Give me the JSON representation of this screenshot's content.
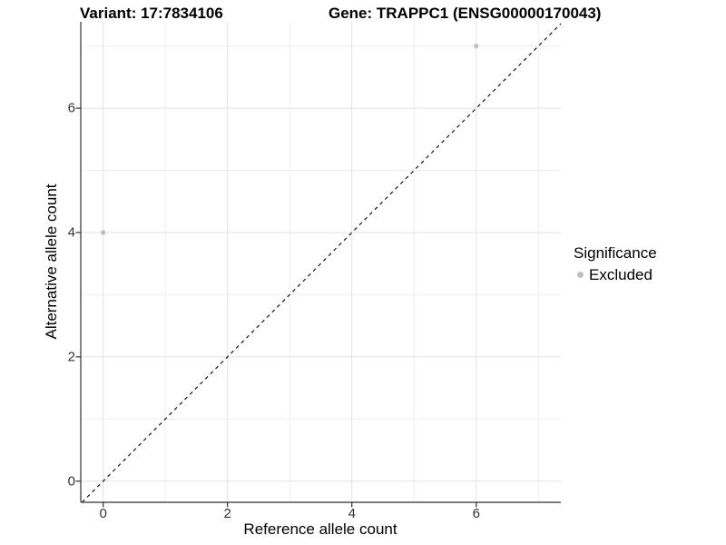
{
  "chart_data": {
    "type": "scatter",
    "title_left": "Variant: 17:7834106",
    "title_right": "Gene: TRAPPC1 (ENSG00000170043)",
    "xlabel": "Reference allele count",
    "ylabel": "Alternative allele count",
    "xlim": [
      -0.36,
      7.36
    ],
    "ylim": [
      -0.34,
      7.39
    ],
    "x_ticks": [
      0,
      2,
      4,
      6
    ],
    "y_ticks": [
      0,
      2,
      4,
      6
    ],
    "x_minor_ticks": [
      1,
      3,
      5,
      7
    ],
    "y_minor_ticks": [
      1,
      3,
      5,
      7
    ],
    "grid": "on",
    "identity_line": {
      "equation": "y = x",
      "style": "dashed",
      "color": "#000000"
    },
    "series": [
      {
        "name": "Excluded",
        "color": "#bebebe",
        "point_radius": 2.6,
        "points": [
          {
            "x": 0,
            "y": 4
          },
          {
            "x": 6,
            "y": 7
          }
        ]
      }
    ],
    "legend": {
      "title": "Significance",
      "position": "right",
      "items": [
        {
          "label": "Excluded",
          "color": "#bebebe",
          "marker": "circle"
        }
      ]
    }
  },
  "colors": {
    "grid_major": "#e2e2e2",
    "grid_minor": "#efefef",
    "axis_line": "#2e2e2e",
    "tick_mark": "#2e2e2e",
    "tick_label": "#333333",
    "text": "#000000",
    "background": "#ffffff"
  }
}
